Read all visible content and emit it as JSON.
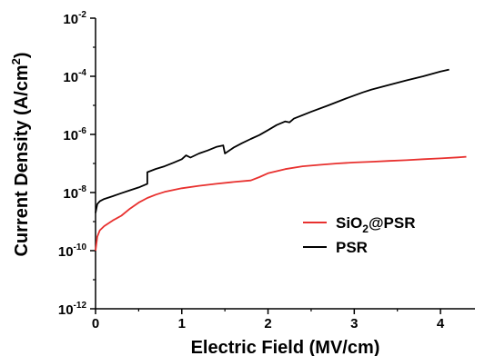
{
  "chart_data": {
    "type": "line",
    "xlabel": "Electric Field (MV/cm)",
    "ylabel_main": "Current Density (A/cm",
    "ylabel_sup": "2",
    "ylabel_end": ")",
    "xlim": [
      0,
      4.4
    ],
    "ylim": [
      1e-12,
      0.01
    ],
    "yscale": "log",
    "x_ticks": [
      0,
      1,
      2,
      3,
      4
    ],
    "y_ticks": [
      {
        "base": "10",
        "exp": "-12",
        "value": 1e-12
      },
      {
        "base": "10",
        "exp": "-10",
        "value": 1e-10
      },
      {
        "base": "10",
        "exp": "-8",
        "value": 1e-08
      },
      {
        "base": "10",
        "exp": "-6",
        "value": 1e-06
      },
      {
        "base": "10",
        "exp": "-4",
        "value": 0.0001
      },
      {
        "base": "10",
        "exp": "-2",
        "value": 0.01
      }
    ],
    "legend_position": "lower-right",
    "series": [
      {
        "name": "SiO2@PSR",
        "legend_main": "SiO",
        "legend_sub": "2",
        "legend_end": "@PSR",
        "color": "#e8312f",
        "x": [
          0,
          0.02,
          0.05,
          0.1,
          0.2,
          0.3,
          0.4,
          0.5,
          0.6,
          0.7,
          0.8,
          1.0,
          1.2,
          1.4,
          1.6,
          1.8,
          1.9,
          2.0,
          2.2,
          2.4,
          2.6,
          2.8,
          3.0,
          3.2,
          3.4,
          3.6,
          3.8,
          4.0,
          4.2,
          4.3
        ],
        "y": [
          1e-10,
          3e-10,
          5e-10,
          7e-10,
          1.1e-09,
          1.6e-09,
          2.8e-09,
          4.5e-09,
          6.5e-09,
          8.5e-09,
          1.05e-08,
          1.4e-08,
          1.7e-08,
          2e-08,
          2.3e-08,
          2.6e-08,
          3.4e-08,
          4.6e-08,
          6.4e-08,
          8e-08,
          9e-08,
          1e-07,
          1.08e-07,
          1.15e-07,
          1.22e-07,
          1.3e-07,
          1.4e-07,
          1.5e-07,
          1.62e-07,
          1.7e-07
        ]
      },
      {
        "name": "PSR",
        "legend_main": "PSR",
        "color": "#000000",
        "x": [
          0,
          0.02,
          0.05,
          0.1,
          0.2,
          0.3,
          0.4,
          0.5,
          0.6,
          0.6,
          0.7,
          0.8,
          0.9,
          1.0,
          1.05,
          1.1,
          1.2,
          1.3,
          1.4,
          1.48,
          1.5,
          1.6,
          1.7,
          1.8,
          1.9,
          2.0,
          2.1,
          2.2,
          2.25,
          2.3,
          2.5,
          2.7,
          2.9,
          3.1,
          3.2,
          3.4,
          3.6,
          3.8,
          4.0,
          4.1
        ],
        "y": [
          2e-09,
          4e-09,
          5e-09,
          6e-09,
          7.5e-09,
          9.5e-09,
          1.2e-08,
          1.5e-08,
          2e-08,
          5e-08,
          6.5e-08,
          8e-08,
          1.05e-07,
          1.4e-07,
          1.9e-07,
          1.6e-07,
          2.2e-07,
          2.8e-07,
          3.7e-07,
          4.2e-07,
          2.2e-07,
          3.5e-07,
          5e-07,
          7e-07,
          9.5e-07,
          1.4e-06,
          2.1e-06,
          2.8e-06,
          2.6e-06,
          3.5e-06,
          6e-06,
          1e-05,
          1.7e-05,
          2.8e-05,
          3.5e-05,
          5e-05,
          7.2e-05,
          0.0001,
          0.000145,
          0.00017
        ]
      }
    ]
  }
}
